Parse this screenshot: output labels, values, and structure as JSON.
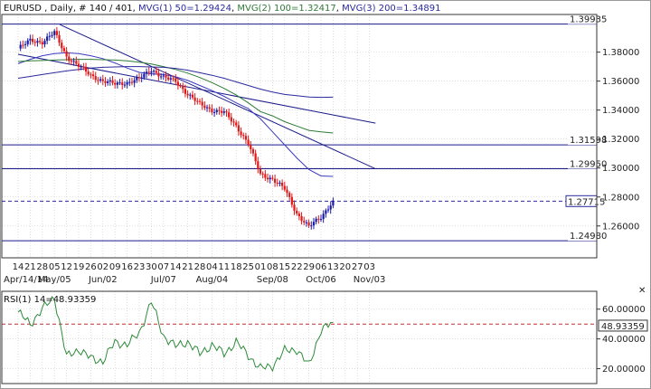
{
  "header": {
    "symbol": "EURUSD",
    "period": "Daily",
    "bars": "# 140 / 401",
    "ma1": "MVG(1) 50=1.29424",
    "ma2": "MVG(2) 100=1.32417",
    "ma3": "MVG(3) 200=1.34891"
  },
  "colors": {
    "bull": "#1a1aa8",
    "bear": "#e01818",
    "ma50": "#3a3ac0",
    "ma100": "#2e7a36",
    "ma200": "#2a2a9e",
    "hline": "#1a1a8a",
    "trend": "#1a1a8a",
    "current": "#2a2aa0",
    "rsi": "#2e8a3a",
    "rsi_ref": "#c03030",
    "grid": "#c8c8c8"
  },
  "chart_data": [
    {
      "type": "candlestick",
      "title": "EURUSD , Daily, # 140 / 401",
      "ylim": [
        1.238,
        1.406
      ],
      "y_ticks": [
        "1.38000",
        "1.36000",
        "1.34000",
        "1.32000",
        "1.30000",
        "1.28000",
        "1.26000"
      ],
      "x_ticks": [
        "14",
        "21",
        "28",
        "05",
        "12",
        "19",
        "26",
        "02",
        "09",
        "16",
        "23",
        "30",
        "07",
        "14",
        "21",
        "28",
        "04",
        "11",
        "18",
        "25",
        "01",
        "08",
        "15",
        "22",
        "29",
        "06",
        "13",
        "20",
        "27",
        "03"
      ],
      "x_month_labels": [
        {
          "label": "Apr/14/14",
          "at": 0
        },
        {
          "label": "May/05",
          "at": 3
        },
        {
          "label": "Jun/02",
          "at": 7
        },
        {
          "label": "Jul/07",
          "at": 12
        },
        {
          "label": "Aug/04",
          "at": 16
        },
        {
          "label": "Sep/08",
          "at": 21
        },
        {
          "label": "Oct/06",
          "at": 25
        },
        {
          "label": "Nov/03",
          "at": 29
        }
      ],
      "weekly_close": [
        1.3825,
        1.388,
        1.387,
        1.3935,
        1.377,
        1.3705,
        1.364,
        1.36,
        1.358,
        1.359,
        1.3615,
        1.368,
        1.3625,
        1.36,
        1.351,
        1.344,
        1.34,
        1.3385,
        1.329,
        1.317,
        1.2955,
        1.2925,
        1.2855,
        1.2685,
        1.2595,
        1.266,
        1.2775
      ],
      "levels": [
        {
          "value": 1.39935,
          "label": "1.39935"
        },
        {
          "value": 1.31598,
          "label": "1.31598"
        },
        {
          "value": 1.2995,
          "label": "1.29950"
        },
        {
          "value": 1.2498,
          "label": "1.24980"
        }
      ],
      "current": {
        "value": 1.27715,
        "label": "1.27715"
      },
      "moving_averages": [
        {
          "name": "MVG(1) 50",
          "weekly": [
            1.372,
            1.375,
            1.3775,
            1.379,
            1.3795,
            1.379,
            1.3775,
            1.3755,
            1.3725,
            1.369,
            1.366,
            1.365,
            1.3645,
            1.363,
            1.3605,
            1.357,
            1.3535,
            1.3495,
            1.345,
            1.341,
            1.334,
            1.325,
            1.316,
            1.307,
            1.299,
            1.2945,
            1.2942
          ]
        },
        {
          "name": "MVG(2) 100",
          "weekly": [
            1.3735,
            1.374,
            1.3742,
            1.3745,
            1.3748,
            1.375,
            1.375,
            1.3748,
            1.3745,
            1.374,
            1.373,
            1.3718,
            1.37,
            1.368,
            1.3655,
            1.3625,
            1.359,
            1.355,
            1.3505,
            1.345,
            1.339,
            1.336,
            1.332,
            1.329,
            1.326,
            1.325,
            1.3242
          ]
        },
        {
          "name": "MVG(3) 200",
          "weekly": [
            1.362,
            1.3632,
            1.3645,
            1.3658,
            1.367,
            1.368,
            1.369,
            1.3695,
            1.3698,
            1.37,
            1.37,
            1.3698,
            1.3695,
            1.3688,
            1.3675,
            1.3658,
            1.364,
            1.362,
            1.3595,
            1.357,
            1.3545,
            1.3525,
            1.3508,
            1.35,
            1.349,
            1.3488,
            1.3489
          ]
        }
      ],
      "trendlines": [
        {
          "from": [
            3.45,
            1.399
          ],
          "to": [
            29.5,
            1.2995
          ]
        },
        {
          "from": [
            0.0,
            1.3785
          ],
          "to": [
            29.5,
            1.331
          ]
        }
      ]
    },
    {
      "type": "line",
      "title": "RSI(1) 14=48.93359",
      "ylim": [
        10,
        72
      ],
      "y_ticks": [
        "60.00000",
        "40.00000",
        "20.00000"
      ],
      "reference": 50,
      "current": {
        "value": 48.93359,
        "label": "48.93359"
      },
      "weekly": [
        58,
        50,
        60,
        68,
        28,
        33,
        27,
        25,
        38,
        36,
        44,
        65,
        42,
        35,
        38,
        30,
        36,
        30,
        38,
        29,
        20,
        22,
        32,
        33,
        22,
        46,
        51
      ]
    }
  ]
}
